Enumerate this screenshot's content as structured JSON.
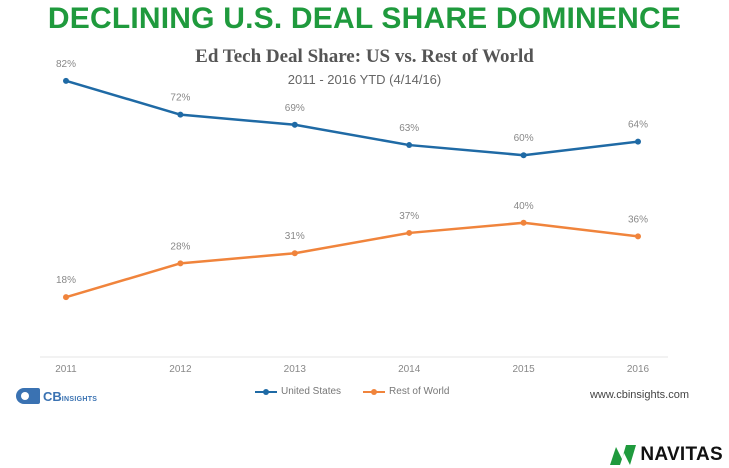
{
  "headline": "DECLINING U.S. DEAL SHARE DOMINENCE",
  "chart_data": {
    "type": "line",
    "title": "Ed Tech Deal Share: US vs. Rest of World",
    "subtitle": "2011 - 2016 YTD (4/14/16)",
    "categories": [
      "2011",
      "2012",
      "2013",
      "2014",
      "2015",
      "2016"
    ],
    "ylim": [
      0,
      100
    ],
    "xlabel": "",
    "ylabel": "",
    "grid": false,
    "legend_position": "bottom-center",
    "series": [
      {
        "name": "United States",
        "color": "#1f6aa5",
        "values": [
          82,
          72,
          69,
          63,
          60,
          64
        ],
        "labels": [
          "82%",
          "72%",
          "69%",
          "63%",
          "60%",
          "64%"
        ]
      },
      {
        "name": "Rest of World",
        "color": "#f0843c",
        "values": [
          18,
          28,
          31,
          37,
          40,
          36
        ],
        "labels": [
          "18%",
          "28%",
          "31%",
          "37%",
          "40%",
          "36%"
        ]
      }
    ]
  },
  "branding": {
    "source_logo_main": "CB",
    "source_logo_sub": "INSIGHTS",
    "source_url": "www.cbinsights.com",
    "company": "NAVITAS",
    "company_color": "#1f9a3d"
  }
}
